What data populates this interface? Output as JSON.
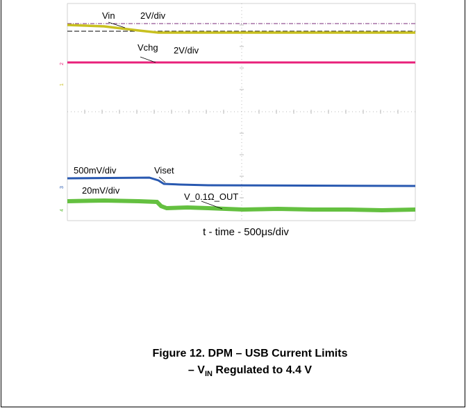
{
  "scope": {
    "traces": [
      {
        "id": "vin",
        "label": "Vin",
        "scale": "2V/div",
        "color": "#c8c020"
      },
      {
        "id": "vchg",
        "label": "Vchg",
        "scale": "2V/div",
        "color": "#e8207a"
      },
      {
        "id": "viset",
        "label": "Viset",
        "scale": "500mV/div",
        "color": "#2858b0"
      },
      {
        "id": "vout",
        "label": "V_0.1Ω_OUT",
        "scale": "20mV/div",
        "color": "#64c040"
      }
    ],
    "channel_markers": [
      "1",
      "2",
      "3",
      "4"
    ]
  },
  "axis_caption": {
    "prefix": "t - time - 500",
    "unit": "μs/div"
  },
  "figure_caption": {
    "line1": "Figure 12. DPM – USB Current Limits",
    "line2_prefix": "– V",
    "line2_sub": "IN",
    "line2_suffix": " Regulated to 4.4 V"
  }
}
